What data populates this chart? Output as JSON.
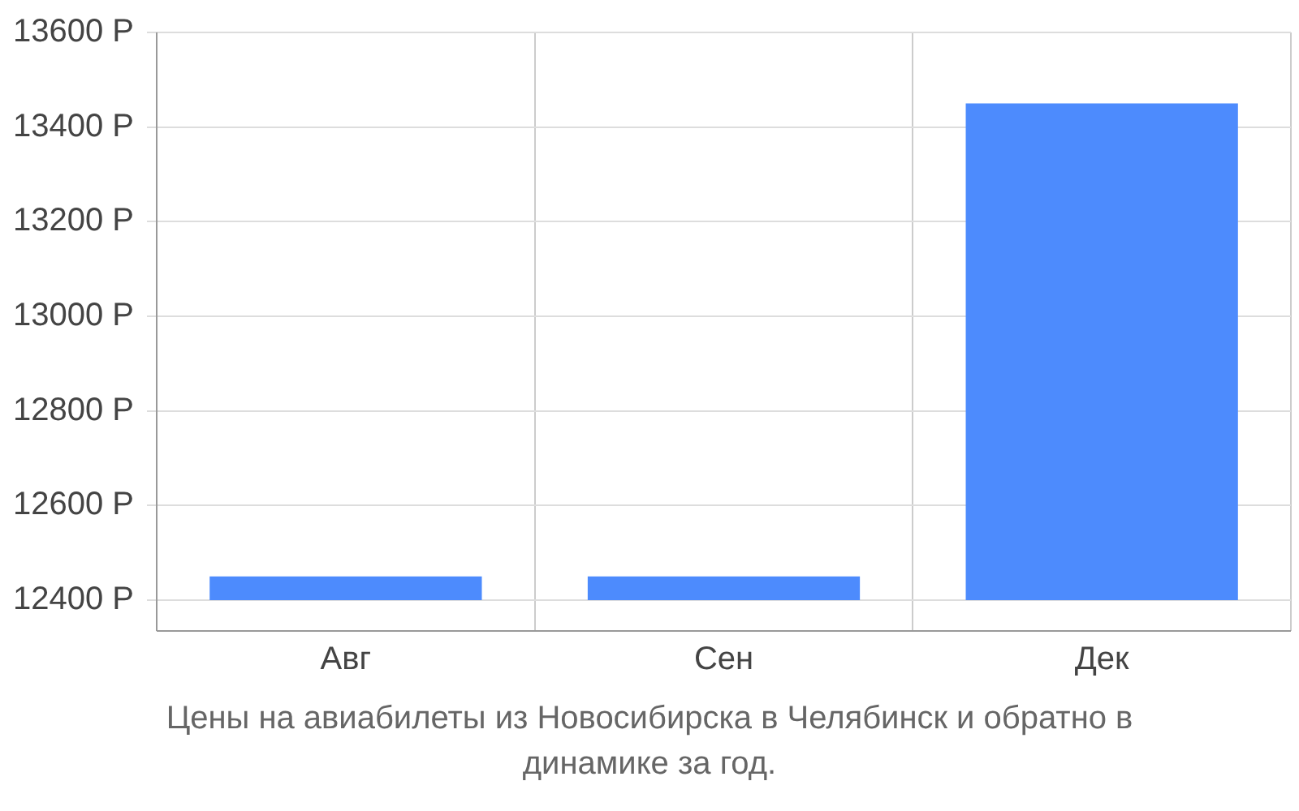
{
  "chart_data": {
    "type": "bar",
    "categories": [
      "Авг",
      "Сен",
      "Дек"
    ],
    "values": [
      12450,
      12450,
      13450
    ],
    "color": "#4d8bfd",
    "ylim": [
      12400,
      13600
    ],
    "yticks": [
      {
        "value": 12400,
        "label": "12400 Р"
      },
      {
        "value": 12600,
        "label": "12600 Р"
      },
      {
        "value": 12800,
        "label": "12800 Р"
      },
      {
        "value": 13000,
        "label": "13000 Р"
      },
      {
        "value": 13200,
        "label": "13200 Р"
      },
      {
        "value": 13400,
        "label": "13400 Р"
      },
      {
        "value": 13600,
        "label": "13600 Р"
      }
    ],
    "grid": true,
    "legend": false,
    "annotations": [
      "Цены на авиабилеты из Новосибирска в Челябинск и обратно в динамике за год."
    ]
  }
}
